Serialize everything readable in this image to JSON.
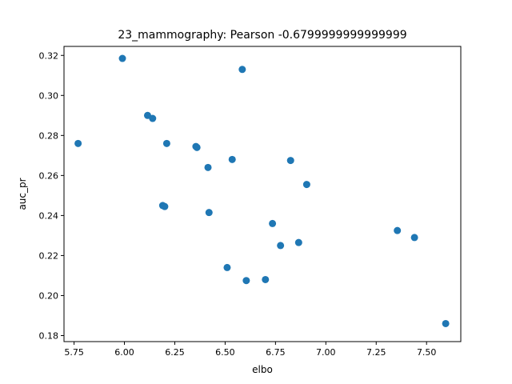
{
  "chart_data": {
    "type": "scatter",
    "title": "23_mammography: Pearson -0.6799999999999999",
    "xlabel": "elbo",
    "ylabel": "auc_pr",
    "xlim": [
      5.7,
      7.67
    ],
    "ylim": [
      0.177,
      0.3245
    ],
    "xticks": [
      "5.75",
      "6.00",
      "6.25",
      "6.50",
      "6.75",
      "7.00",
      "7.25",
      "7.50"
    ],
    "yticks": [
      "0.18",
      "0.20",
      "0.22",
      "0.24",
      "0.26",
      "0.28",
      "0.30",
      "0.32"
    ],
    "grid": false,
    "marker_color": "#1f77b4",
    "points": [
      {
        "x": 5.77,
        "y": 0.276
      },
      {
        "x": 5.99,
        "y": 0.3185
      },
      {
        "x": 6.115,
        "y": 0.29
      },
      {
        "x": 6.14,
        "y": 0.2885
      },
      {
        "x": 6.19,
        "y": 0.245
      },
      {
        "x": 6.2,
        "y": 0.2445
      },
      {
        "x": 6.21,
        "y": 0.276
      },
      {
        "x": 6.355,
        "y": 0.2745
      },
      {
        "x": 6.36,
        "y": 0.274
      },
      {
        "x": 6.415,
        "y": 0.264
      },
      {
        "x": 6.42,
        "y": 0.2415
      },
      {
        "x": 6.51,
        "y": 0.214
      },
      {
        "x": 6.535,
        "y": 0.268
      },
      {
        "x": 6.585,
        "y": 0.313
      },
      {
        "x": 6.605,
        "y": 0.2075
      },
      {
        "x": 6.7,
        "y": 0.208
      },
      {
        "x": 6.735,
        "y": 0.236
      },
      {
        "x": 6.775,
        "y": 0.225
      },
      {
        "x": 6.825,
        "y": 0.2675
      },
      {
        "x": 6.865,
        "y": 0.2265
      },
      {
        "x": 6.905,
        "y": 0.2555
      },
      {
        "x": 7.355,
        "y": 0.2325
      },
      {
        "x": 7.44,
        "y": 0.229
      },
      {
        "x": 7.595,
        "y": 0.186
      }
    ]
  }
}
